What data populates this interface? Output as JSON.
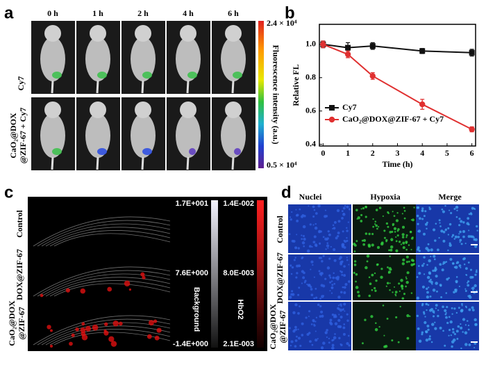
{
  "panel_labels": [
    "a",
    "b",
    "c",
    "d"
  ],
  "panel_a": {
    "timepoints": [
      "0 h",
      "1 h",
      "2 h",
      "4 h",
      "6 h"
    ],
    "rows": [
      "Cy7",
      "CaO₂@DOX",
      "@ZIF-67 + Cy7"
    ],
    "colorbar_label": "Fluorescence intensity (a.u.)",
    "colorbar_max": "2.4 × 10⁴",
    "colorbar_min": "0.5 × 10⁴"
  },
  "chart_data": {
    "type": "line",
    "x": [
      0,
      1,
      2,
      4,
      6
    ],
    "series": [
      {
        "name": "Cy7",
        "color": "#111111",
        "marker": "square",
        "values": [
          1.0,
          0.98,
          0.99,
          0.96,
          0.95
        ],
        "errors": [
          0.02,
          0.03,
          0.02,
          0.015,
          0.02
        ]
      },
      {
        "name": "CaO₂@DOX@ZIF-67 + Cy7",
        "color": "#e03030",
        "marker": "circle",
        "values": [
          1.0,
          0.94,
          0.81,
          0.64,
          0.49
        ],
        "errors": [
          0.02,
          0.02,
          0.02,
          0.03,
          0.015
        ]
      }
    ],
    "xlabel": "Time (h)",
    "ylabel": "Relative FL",
    "xlim": [
      -0.15,
      6.15
    ],
    "xticks": [
      0,
      1,
      2,
      3,
      4,
      5,
      6
    ],
    "ylim": [
      0.39,
      1.12
    ],
    "yticks": [
      0.4,
      0.6,
      0.8,
      {
        "value": 1,
        "label": "1.0"
      }
    ],
    "legend": "lower left"
  },
  "panel_c": {
    "rows": [
      "Control",
      "DOX@ZIF-67",
      "CaO₂@DOX",
      "@ZIF-67"
    ],
    "background_bar": {
      "label": "Background",
      "ticks": [
        "1.7E+001",
        "7.6E+000",
        "-1.4E+000"
      ]
    },
    "hbo2_bar": {
      "label": "HbO2",
      "ticks": [
        "1.4E-002",
        "8.0E-003",
        "2.1E-003"
      ]
    }
  },
  "panel_d": {
    "columns": [
      "Nuclei",
      "Hypoxia",
      "Merge"
    ],
    "rows": [
      "Control",
      "DOX@ZIF-67",
      "CaO₂@DOX",
      "@ZIF-67"
    ]
  }
}
